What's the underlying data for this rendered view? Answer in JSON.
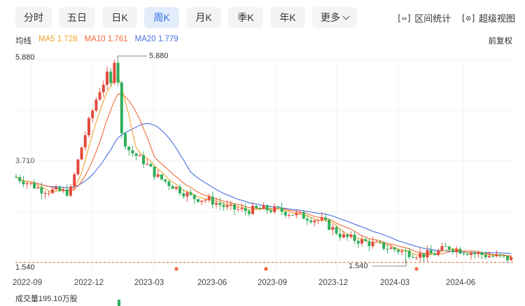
{
  "tabs": [
    {
      "label": "分时",
      "active": false
    },
    {
      "label": "五日",
      "active": false
    },
    {
      "label": "日K",
      "active": false
    },
    {
      "label": "周K",
      "active": true
    },
    {
      "label": "月K",
      "active": false
    },
    {
      "label": "季K",
      "active": false
    },
    {
      "label": "年K",
      "active": false
    },
    {
      "label": "更多",
      "active": false
    }
  ],
  "tools": {
    "interval_stats_icon": "[⇔]",
    "interval_stats": "区间统计",
    "super_view_icon": "[⊙]",
    "super_view": "超级视图"
  },
  "ma": {
    "label": "均线",
    "ma5": "MA5 1.728",
    "ma10": "MA10 1.761",
    "ma20": "MA20 1.779"
  },
  "adjust": "前复权",
  "colors": {
    "up": "#e34a3c",
    "down": "#2fae5a",
    "ma5": "#f0a32a",
    "ma10": "#f26a3a",
    "ma20": "#4a6ee0",
    "accent": "#2f6fe4"
  },
  "price_labels": {
    "top": "5.880",
    "bottom": "1.540",
    "left_partial": "3.710",
    "high_marker": "5.880",
    "low_marker": "1.540"
  },
  "chart_data": {
    "type": "candlestick",
    "ylim": [
      1.54,
      5.88
    ],
    "x_ticks": [
      "2022-09",
      "2022-12",
      "2023-03",
      "2023-06",
      "2023-09",
      "2023-12",
      "2024-03",
      "2024-06"
    ],
    "high": 5.88,
    "low": 1.54,
    "ma_legend": [
      "MA5 1.728",
      "MA10 1.761",
      "MA20 1.779"
    ]
  },
  "volume": {
    "label": "成交量195.10万股"
  }
}
